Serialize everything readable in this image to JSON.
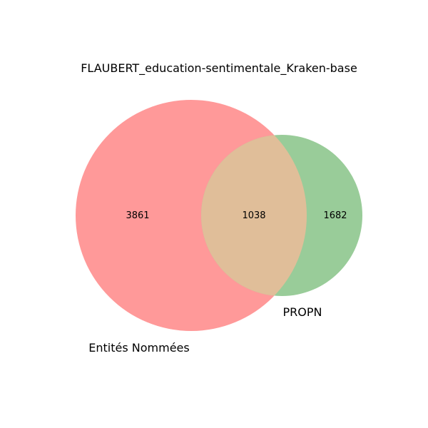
{
  "chart_data": {
    "type": "venn",
    "title": "FLAUBERT_education-sentimentale_Kraken-base",
    "sets": [
      {
        "name": "Entités Nommées",
        "only_count": 3861,
        "color": "#ff9999"
      },
      {
        "name": "PROPN",
        "only_count": 1682,
        "color": "#99cc99"
      }
    ],
    "intersection": {
      "count": 1038,
      "color": "#e0be99"
    }
  }
}
